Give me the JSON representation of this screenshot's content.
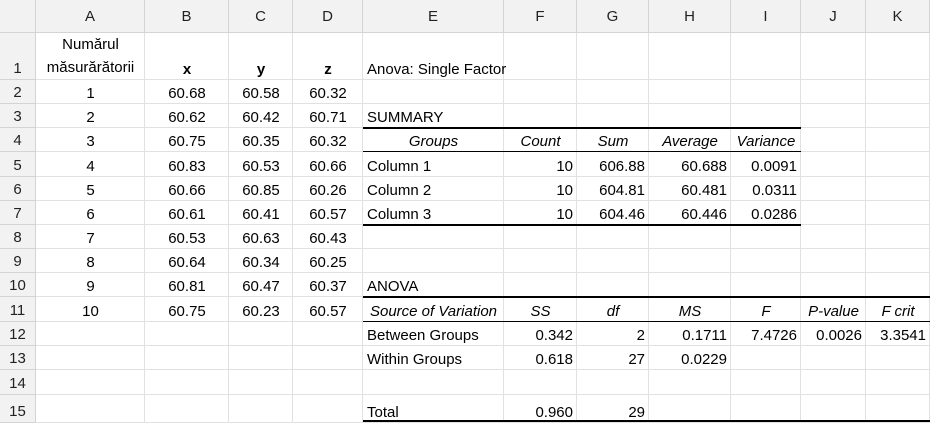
{
  "columns": [
    "A",
    "B",
    "C",
    "D",
    "E",
    "F",
    "G",
    "H",
    "I",
    "J",
    "K"
  ],
  "rows": [
    "1",
    "2",
    "3",
    "4",
    "5",
    "6",
    "7",
    "8",
    "9",
    "10",
    "11",
    "12",
    "13",
    "14",
    "15"
  ],
  "data_table": {
    "header_a_line1": "Numărul",
    "header_a_line2": "măsurărătorii",
    "header_b": "x",
    "header_c": "y",
    "header_d": "z",
    "rows": [
      [
        "1",
        "60.68",
        "60.58",
        "60.32"
      ],
      [
        "2",
        "60.62",
        "60.42",
        "60.71"
      ],
      [
        "3",
        "60.75",
        "60.35",
        "60.32"
      ],
      [
        "4",
        "60.83",
        "60.53",
        "60.66"
      ],
      [
        "5",
        "60.66",
        "60.85",
        "60.26"
      ],
      [
        "6",
        "60.61",
        "60.41",
        "60.57"
      ],
      [
        "7",
        "60.53",
        "60.63",
        "60.43"
      ],
      [
        "8",
        "60.64",
        "60.34",
        "60.25"
      ],
      [
        "9",
        "60.81",
        "60.47",
        "60.37"
      ],
      [
        "10",
        "60.75",
        "60.23",
        "60.57"
      ]
    ]
  },
  "anova": {
    "title": "Anova: Single Factor",
    "summary_label": "SUMMARY",
    "summary_headers": [
      "Groups",
      "Count",
      "Sum",
      "Average",
      "Variance"
    ],
    "summary_rows": [
      [
        "Column 1",
        "10",
        "606.88",
        "60.688",
        "0.0091"
      ],
      [
        "Column 2",
        "10",
        "604.81",
        "60.481",
        "0.0311"
      ],
      [
        "Column 3",
        "10",
        "604.46",
        "60.446",
        "0.0286"
      ]
    ],
    "anova_label": "ANOVA",
    "anova_headers": [
      "Source of Variation",
      "SS",
      "df",
      "MS",
      "F",
      "P-value",
      "F crit"
    ],
    "between": [
      "Between Groups",
      "0.342",
      "2",
      "0.1711",
      "7.4726",
      "0.0026",
      "3.3541"
    ],
    "within": [
      "Within Groups",
      "0.618",
      "27",
      "0.0229"
    ],
    "total": [
      "Total",
      "0.960",
      "29"
    ]
  }
}
